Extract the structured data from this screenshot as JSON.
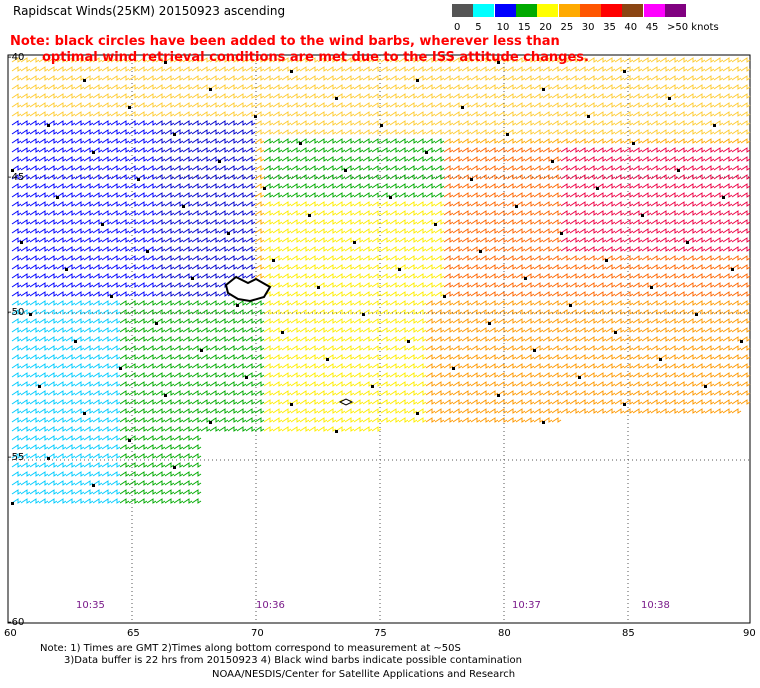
{
  "title": "Rapidscat Winds(25KM) 20150923 ascending",
  "note": {
    "line1": "Note: black circles have been added to the wind barbs, wherever less than",
    "line2": "optimal wind retrieval conditions are met due to the ISS attitude changes."
  },
  "legend": {
    "labels": [
      "0",
      "5",
      "10",
      "15",
      "20",
      "25",
      "30",
      "35",
      "40",
      "45",
      ">50 knots"
    ],
    "colors": [
      "#555555",
      "#00ffff",
      "#0000ff",
      "#00aa00",
      "#ffff00",
      "#ffaa00",
      "#ff5500",
      "#ff0000",
      "#8b4513",
      "#ff00ff",
      "#800080"
    ]
  },
  "axes": {
    "lat_labels": [
      "-45",
      "-50",
      "-55",
      "-60"
    ],
    "lon_labels": [
      "60",
      "65",
      "70",
      "75",
      "80",
      "85",
      "90"
    ],
    "top_lat_label": "-40"
  },
  "times": [
    "10:35",
    "10:36",
    "10:37",
    "10:38"
  ],
  "footer": {
    "line1": "Note: 1) Times are GMT 2)Times along bottom correspond to measurement at ~50S",
    "line2": "3)Data buffer is 22 hrs from 20150923 4) Black wind barbs indicate possible contamination",
    "line3": "NOAA/NESDIS/Center for Satellite Applications and Research"
  }
}
